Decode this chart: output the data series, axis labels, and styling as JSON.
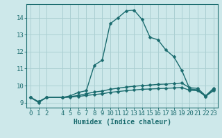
{
  "xlabel": "Humidex (Indice chaleur)",
  "bg_color": "#cde8ea",
  "grid_color": "#aacfd2",
  "line_color": "#1a6b6e",
  "xlim": [
    -0.5,
    23.5
  ],
  "ylim": [
    8.7,
    14.8
  ],
  "xticks": [
    0,
    1,
    2,
    4,
    5,
    6,
    7,
    8,
    9,
    10,
    11,
    12,
    13,
    14,
    15,
    16,
    17,
    18,
    19,
    20,
    21,
    22,
    23
  ],
  "yticks": [
    9,
    10,
    11,
    12,
    13,
    14
  ],
  "series1_x": [
    0,
    1,
    2,
    4,
    5,
    6,
    7,
    8,
    9,
    10,
    11,
    12,
    13,
    14,
    15,
    16,
    17,
    18,
    19,
    20,
    21,
    22,
    23
  ],
  "series1_y": [
    9.3,
    9.0,
    9.3,
    9.3,
    9.4,
    9.6,
    9.7,
    11.2,
    11.5,
    13.65,
    14.0,
    14.4,
    14.45,
    13.9,
    12.85,
    12.7,
    12.1,
    11.7,
    10.9,
    9.8,
    9.75,
    9.35,
    9.8
  ],
  "series2_x": [
    0,
    1,
    2,
    4,
    5,
    6,
    7,
    8,
    9,
    10,
    11,
    12,
    13,
    14,
    15,
    16,
    17,
    18,
    19,
    20,
    21,
    22,
    23
  ],
  "series2_y": [
    9.3,
    9.05,
    9.3,
    9.3,
    9.35,
    9.42,
    9.52,
    9.62,
    9.68,
    9.78,
    9.85,
    9.91,
    9.96,
    10.0,
    10.03,
    10.07,
    10.09,
    10.12,
    10.15,
    9.87,
    9.84,
    9.4,
    9.84
  ],
  "series3_x": [
    0,
    1,
    2,
    4,
    5,
    6,
    7,
    8,
    9,
    10,
    11,
    12,
    13,
    14,
    15,
    16,
    17,
    18,
    19,
    20,
    21,
    22,
    23
  ],
  "series3_y": [
    9.3,
    9.05,
    9.3,
    9.3,
    9.32,
    9.36,
    9.42,
    9.47,
    9.52,
    9.6,
    9.65,
    9.7,
    9.74,
    9.78,
    9.8,
    9.82,
    9.84,
    9.86,
    9.89,
    9.72,
    9.7,
    9.37,
    9.7
  ],
  "marker_size": 2.5,
  "line_width": 1.0,
  "font_size_label": 7,
  "font_size_tick": 6.5
}
